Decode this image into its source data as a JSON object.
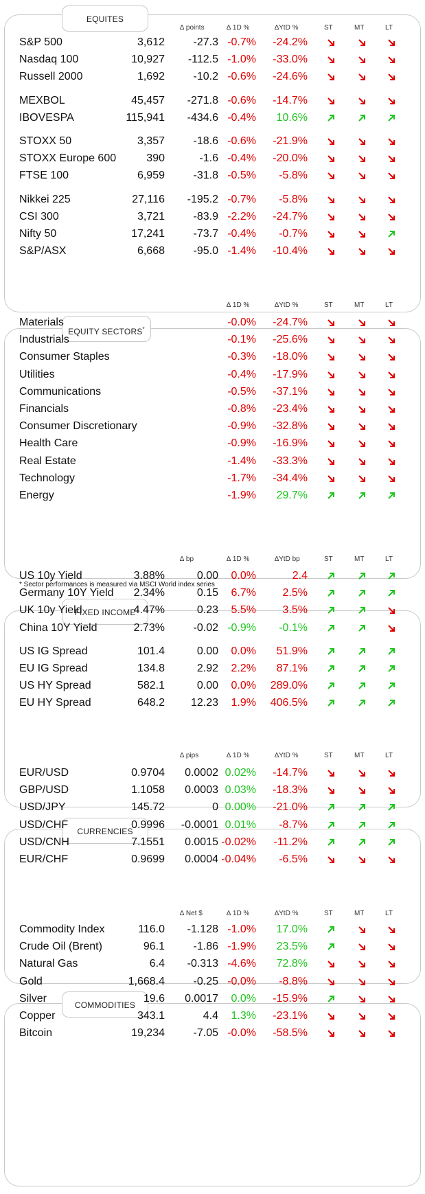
{
  "colors": {
    "red": "#e00000",
    "green": "#1ec51e",
    "border": "#c9c9c9"
  },
  "equities": {
    "title": "EQUITES",
    "headers": {
      "c1": "∆ points",
      "c2": "∆ 1D %",
      "c3": "∆YtD %",
      "st": "ST",
      "mt": "MT",
      "lt": "LT"
    },
    "rows": [
      {
        "name": "S&P 500",
        "level": "3,612",
        "chg": "-27.3",
        "d1": "-0.7%",
        "ytd": "-24.2%",
        "st": "down",
        "mt": "down",
        "lt": "down",
        "gap": 0
      },
      {
        "name": "Nasdaq 100",
        "level": "10,927",
        "chg": "-112.5",
        "d1": "-1.0%",
        "ytd": "-33.0%",
        "st": "down",
        "mt": "down",
        "lt": "down",
        "gap": 0
      },
      {
        "name": "Russell 2000",
        "level": "1,692",
        "chg": "-10.2",
        "d1": "-0.6%",
        "ytd": "-24.6%",
        "st": "down",
        "mt": "down",
        "lt": "down",
        "gap": 0
      },
      {
        "name": "MEXBOL",
        "level": "45,457",
        "chg": "-271.8",
        "d1": "-0.6%",
        "ytd": "-14.7%",
        "st": "down",
        "mt": "down",
        "lt": "down",
        "gap": 1
      },
      {
        "name": "IBOVESPA",
        "level": "115,941",
        "chg": "-434.6",
        "d1": "-0.4%",
        "ytd": "10.6%",
        "st": "up",
        "mt": "up",
        "lt": "up",
        "gap": 0
      },
      {
        "name": "STOXX 50",
        "level": "3,357",
        "chg": "-18.6",
        "d1": "-0.6%",
        "ytd": "-21.9%",
        "st": "down",
        "mt": "down",
        "lt": "down",
        "gap": 1
      },
      {
        "name": "STOXX Europe 600",
        "level": "390",
        "chg": "-1.6",
        "d1": "-0.4%",
        "ytd": "-20.0%",
        "st": "down",
        "mt": "down",
        "lt": "down",
        "gap": 0
      },
      {
        "name": "FTSE 100",
        "level": "6,959",
        "chg": "-31.8",
        "d1": "-0.5%",
        "ytd": "-5.8%",
        "st": "down",
        "mt": "down",
        "lt": "down",
        "gap": 0
      },
      {
        "name": "Nikkei 225",
        "level": "27,116",
        "chg": "-195.2",
        "d1": "-0.7%",
        "ytd": "-5.8%",
        "st": "down",
        "mt": "down",
        "lt": "down",
        "gap": 1
      },
      {
        "name": "CSI 300",
        "level": "3,721",
        "chg": "-83.9",
        "d1": "-2.2%",
        "ytd": "-24.7%",
        "st": "down",
        "mt": "down",
        "lt": "down",
        "gap": 0
      },
      {
        "name": "Nifty  50",
        "level": "17,241",
        "chg": "-73.7",
        "d1": "-0.4%",
        "ytd": "-0.7%",
        "st": "down",
        "mt": "down",
        "lt": "up",
        "gap": 0
      },
      {
        "name": "S&P/ASX",
        "level": "6,668",
        "chg": "-95.0",
        "d1": "-1.4%",
        "ytd": "-10.4%",
        "st": "down",
        "mt": "down",
        "lt": "down",
        "gap": 0
      }
    ]
  },
  "sectors": {
    "title": "EQUITY SECTORS",
    "title_sup": "*",
    "headers": {
      "c2": "∆ 1D %",
      "c3": "∆YtD %",
      "st": "ST",
      "mt": "MT",
      "lt": "LT"
    },
    "note": "* Sector performances is measured via MSCI World index series",
    "rows": [
      {
        "name": "Materials",
        "d1": "-0.0%",
        "ytd": "-24.7%",
        "st": "down",
        "mt": "down",
        "lt": "down"
      },
      {
        "name": "Industrials",
        "d1": "-0.1%",
        "ytd": "-25.6%",
        "st": "down",
        "mt": "down",
        "lt": "down"
      },
      {
        "name": "Consumer Staples",
        "d1": "-0.3%",
        "ytd": "-18.0%",
        "st": "down",
        "mt": "down",
        "lt": "down"
      },
      {
        "name": "Utilities",
        "d1": "-0.4%",
        "ytd": "-17.9%",
        "st": "down",
        "mt": "down",
        "lt": "down"
      },
      {
        "name": "Communications",
        "d1": "-0.5%",
        "ytd": "-37.1%",
        "st": "down",
        "mt": "down",
        "lt": "down"
      },
      {
        "name": "Financials",
        "d1": "-0.8%",
        "ytd": "-23.4%",
        "st": "down",
        "mt": "down",
        "lt": "down"
      },
      {
        "name": "Consumer Discretionary",
        "d1": "-0.9%",
        "ytd": "-32.8%",
        "st": "down",
        "mt": "down",
        "lt": "down"
      },
      {
        "name": "Health Care",
        "d1": "-0.9%",
        "ytd": "-16.9%",
        "st": "down",
        "mt": "down",
        "lt": "down"
      },
      {
        "name": "Real Estate",
        "d1": "-1.4%",
        "ytd": "-33.3%",
        "st": "down",
        "mt": "down",
        "lt": "down"
      },
      {
        "name": "Technology",
        "d1": "-1.7%",
        "ytd": "-34.4%",
        "st": "down",
        "mt": "down",
        "lt": "down"
      },
      {
        "name": "Energy",
        "d1": "-1.9%",
        "ytd": "29.7%",
        "st": "up",
        "mt": "up",
        "lt": "up"
      }
    ]
  },
  "fixed_income": {
    "title": "FIXED INCOME",
    "headers": {
      "c1": "∆ bp",
      "c2": "∆ 1D %",
      "c3": "∆YtD bp",
      "st": "ST",
      "mt": "MT",
      "lt": "LT"
    },
    "rows": [
      {
        "name": "US 10y Yield",
        "level": "3.88%",
        "chg": "0.00",
        "d1": "0.0%",
        "d1c": "red",
        "ytd": "2.4",
        "ytdc": "red",
        "st": "up",
        "mt": "up",
        "lt": "up",
        "gap": 0
      },
      {
        "name": "Germany 10Y Yield",
        "level": "2.34%",
        "chg": "0.15",
        "d1": "6.7%",
        "d1c": "red",
        "ytd": "2.5%",
        "ytdc": "red",
        "st": "up",
        "mt": "up",
        "lt": "up",
        "gap": 0
      },
      {
        "name": "UK 10y Yield",
        "level": "4.47%",
        "chg": "0.23",
        "d1": "5.5%",
        "d1c": "red",
        "ytd": "3.5%",
        "ytdc": "red",
        "st": "up",
        "mt": "up",
        "lt": "down",
        "gap": 0
      },
      {
        "name": "China 10Y Yield",
        "level": "2.73%",
        "chg": "-0.02",
        "d1": "-0.9%",
        "d1c": "green",
        "ytd": "-0.1%",
        "ytdc": "green",
        "st": "up",
        "mt": "up",
        "lt": "down",
        "gap": 0
      },
      {
        "name": "US IG Spread",
        "level": "101.4",
        "chg": "0.00",
        "d1": "0.0%",
        "d1c": "red",
        "ytd": "51.9%",
        "ytdc": "red",
        "st": "up",
        "mt": "up",
        "lt": "up",
        "gap": 1
      },
      {
        "name": "EU IG Spread",
        "level": "134.8",
        "chg": "2.92",
        "d1": "2.2%",
        "d1c": "red",
        "ytd": "87.1%",
        "ytdc": "red",
        "st": "up",
        "mt": "up",
        "lt": "up",
        "gap": 0
      },
      {
        "name": "US HY Spread",
        "level": "582.1",
        "chg": "0.00",
        "d1": "0.0%",
        "d1c": "red",
        "ytd": "289.0%",
        "ytdc": "red",
        "st": "up",
        "mt": "up",
        "lt": "up",
        "gap": 0
      },
      {
        "name": "EU HY Spread",
        "level": "648.2",
        "chg": "12.23",
        "d1": "1.9%",
        "d1c": "red",
        "ytd": "406.5%",
        "ytdc": "red",
        "st": "up",
        "mt": "up",
        "lt": "up",
        "gap": 0
      }
    ]
  },
  "currencies": {
    "title": "CURRENCIES",
    "headers": {
      "c1": "∆ pips",
      "c2": "∆ 1D %",
      "c3": "∆YtD %",
      "st": "ST",
      "mt": "MT",
      "lt": "LT"
    },
    "rows": [
      {
        "name": "EUR/USD",
        "level": "0.9704",
        "chg": "0.0002",
        "d1": "0.02%",
        "d1c": "green",
        "ytd": "-14.7%",
        "ytdc": "red",
        "st": "down",
        "mt": "down",
        "lt": "down"
      },
      {
        "name": "GBP/USD",
        "level": "1.1058",
        "chg": "0.0003",
        "d1": "0.03%",
        "d1c": "green",
        "ytd": "-18.3%",
        "ytdc": "red",
        "st": "down",
        "mt": "down",
        "lt": "down"
      },
      {
        "name": "USD/JPY",
        "level": "145.72",
        "chg": "0",
        "d1": "0.00%",
        "d1c": "green",
        "ytd": "-21.0%",
        "ytdc": "red",
        "st": "up",
        "mt": "up",
        "lt": "up"
      },
      {
        "name": "USD/CHF",
        "level": "0.9996",
        "chg": "-0.0001",
        "d1": "0.01%",
        "d1c": "green",
        "ytd": "-8.7%",
        "ytdc": "red",
        "st": "up",
        "mt": "up",
        "lt": "up"
      },
      {
        "name": "USD/CNH",
        "level": "7.1551",
        "chg": "0.0015",
        "d1": "-0.02%",
        "d1c": "red",
        "ytd": "-11.2%",
        "ytdc": "red",
        "st": "up",
        "mt": "up",
        "lt": "up"
      },
      {
        "name": "EUR/CHF",
        "level": "0.9699",
        "chg": "0.0004",
        "d1": "-0.04%",
        "d1c": "red",
        "ytd": "-6.5%",
        "ytdc": "red",
        "st": "down",
        "mt": "down",
        "lt": "down"
      }
    ]
  },
  "commodities": {
    "title": "COMMODITIES",
    "headers": {
      "c1": "∆ Net $",
      "c2": "∆ 1D %",
      "c3": "∆YtD %",
      "st": "ST",
      "mt": "MT",
      "lt": "LT"
    },
    "rows": [
      {
        "name": "Commodity Index",
        "level": "116.0",
        "chg": "-1.128",
        "d1": "-1.0%",
        "d1c": "red",
        "ytd": "17.0%",
        "ytdc": "green",
        "st": "up",
        "mt": "down",
        "lt": "down"
      },
      {
        "name": "Crude Oil (Brent)",
        "level": "96.1",
        "chg": "-1.86",
        "d1": "-1.9%",
        "d1c": "red",
        "ytd": "23.5%",
        "ytdc": "green",
        "st": "up",
        "mt": "down",
        "lt": "down"
      },
      {
        "name": "Natural Gas",
        "level": "6.4",
        "chg": "-0.313",
        "d1": "-4.6%",
        "d1c": "red",
        "ytd": "72.8%",
        "ytdc": "green",
        "st": "down",
        "mt": "down",
        "lt": "down"
      },
      {
        "name": "Gold",
        "level": "1,668.4",
        "chg": "-0.25",
        "d1": "-0.0%",
        "d1c": "red",
        "ytd": "-8.8%",
        "ytdc": "red",
        "st": "down",
        "mt": "down",
        "lt": "down"
      },
      {
        "name": "Silver",
        "level": "19.6",
        "chg": "0.0017",
        "d1": "0.0%",
        "d1c": "green",
        "ytd": "-15.9%",
        "ytdc": "red",
        "st": "up",
        "mt": "down",
        "lt": "down"
      },
      {
        "name": "Copper",
        "level": "343.1",
        "chg": "4.4",
        "d1": "1.3%",
        "d1c": "green",
        "ytd": "-23.1%",
        "ytdc": "red",
        "st": "down",
        "mt": "down",
        "lt": "down"
      },
      {
        "name": "Bitcoin",
        "level": "19,234",
        "chg": "-7.05",
        "d1": "-0.0%",
        "d1c": "red",
        "ytd": "-58.5%",
        "ytdc": "red",
        "st": "down",
        "mt": "down",
        "lt": "down"
      }
    ]
  }
}
